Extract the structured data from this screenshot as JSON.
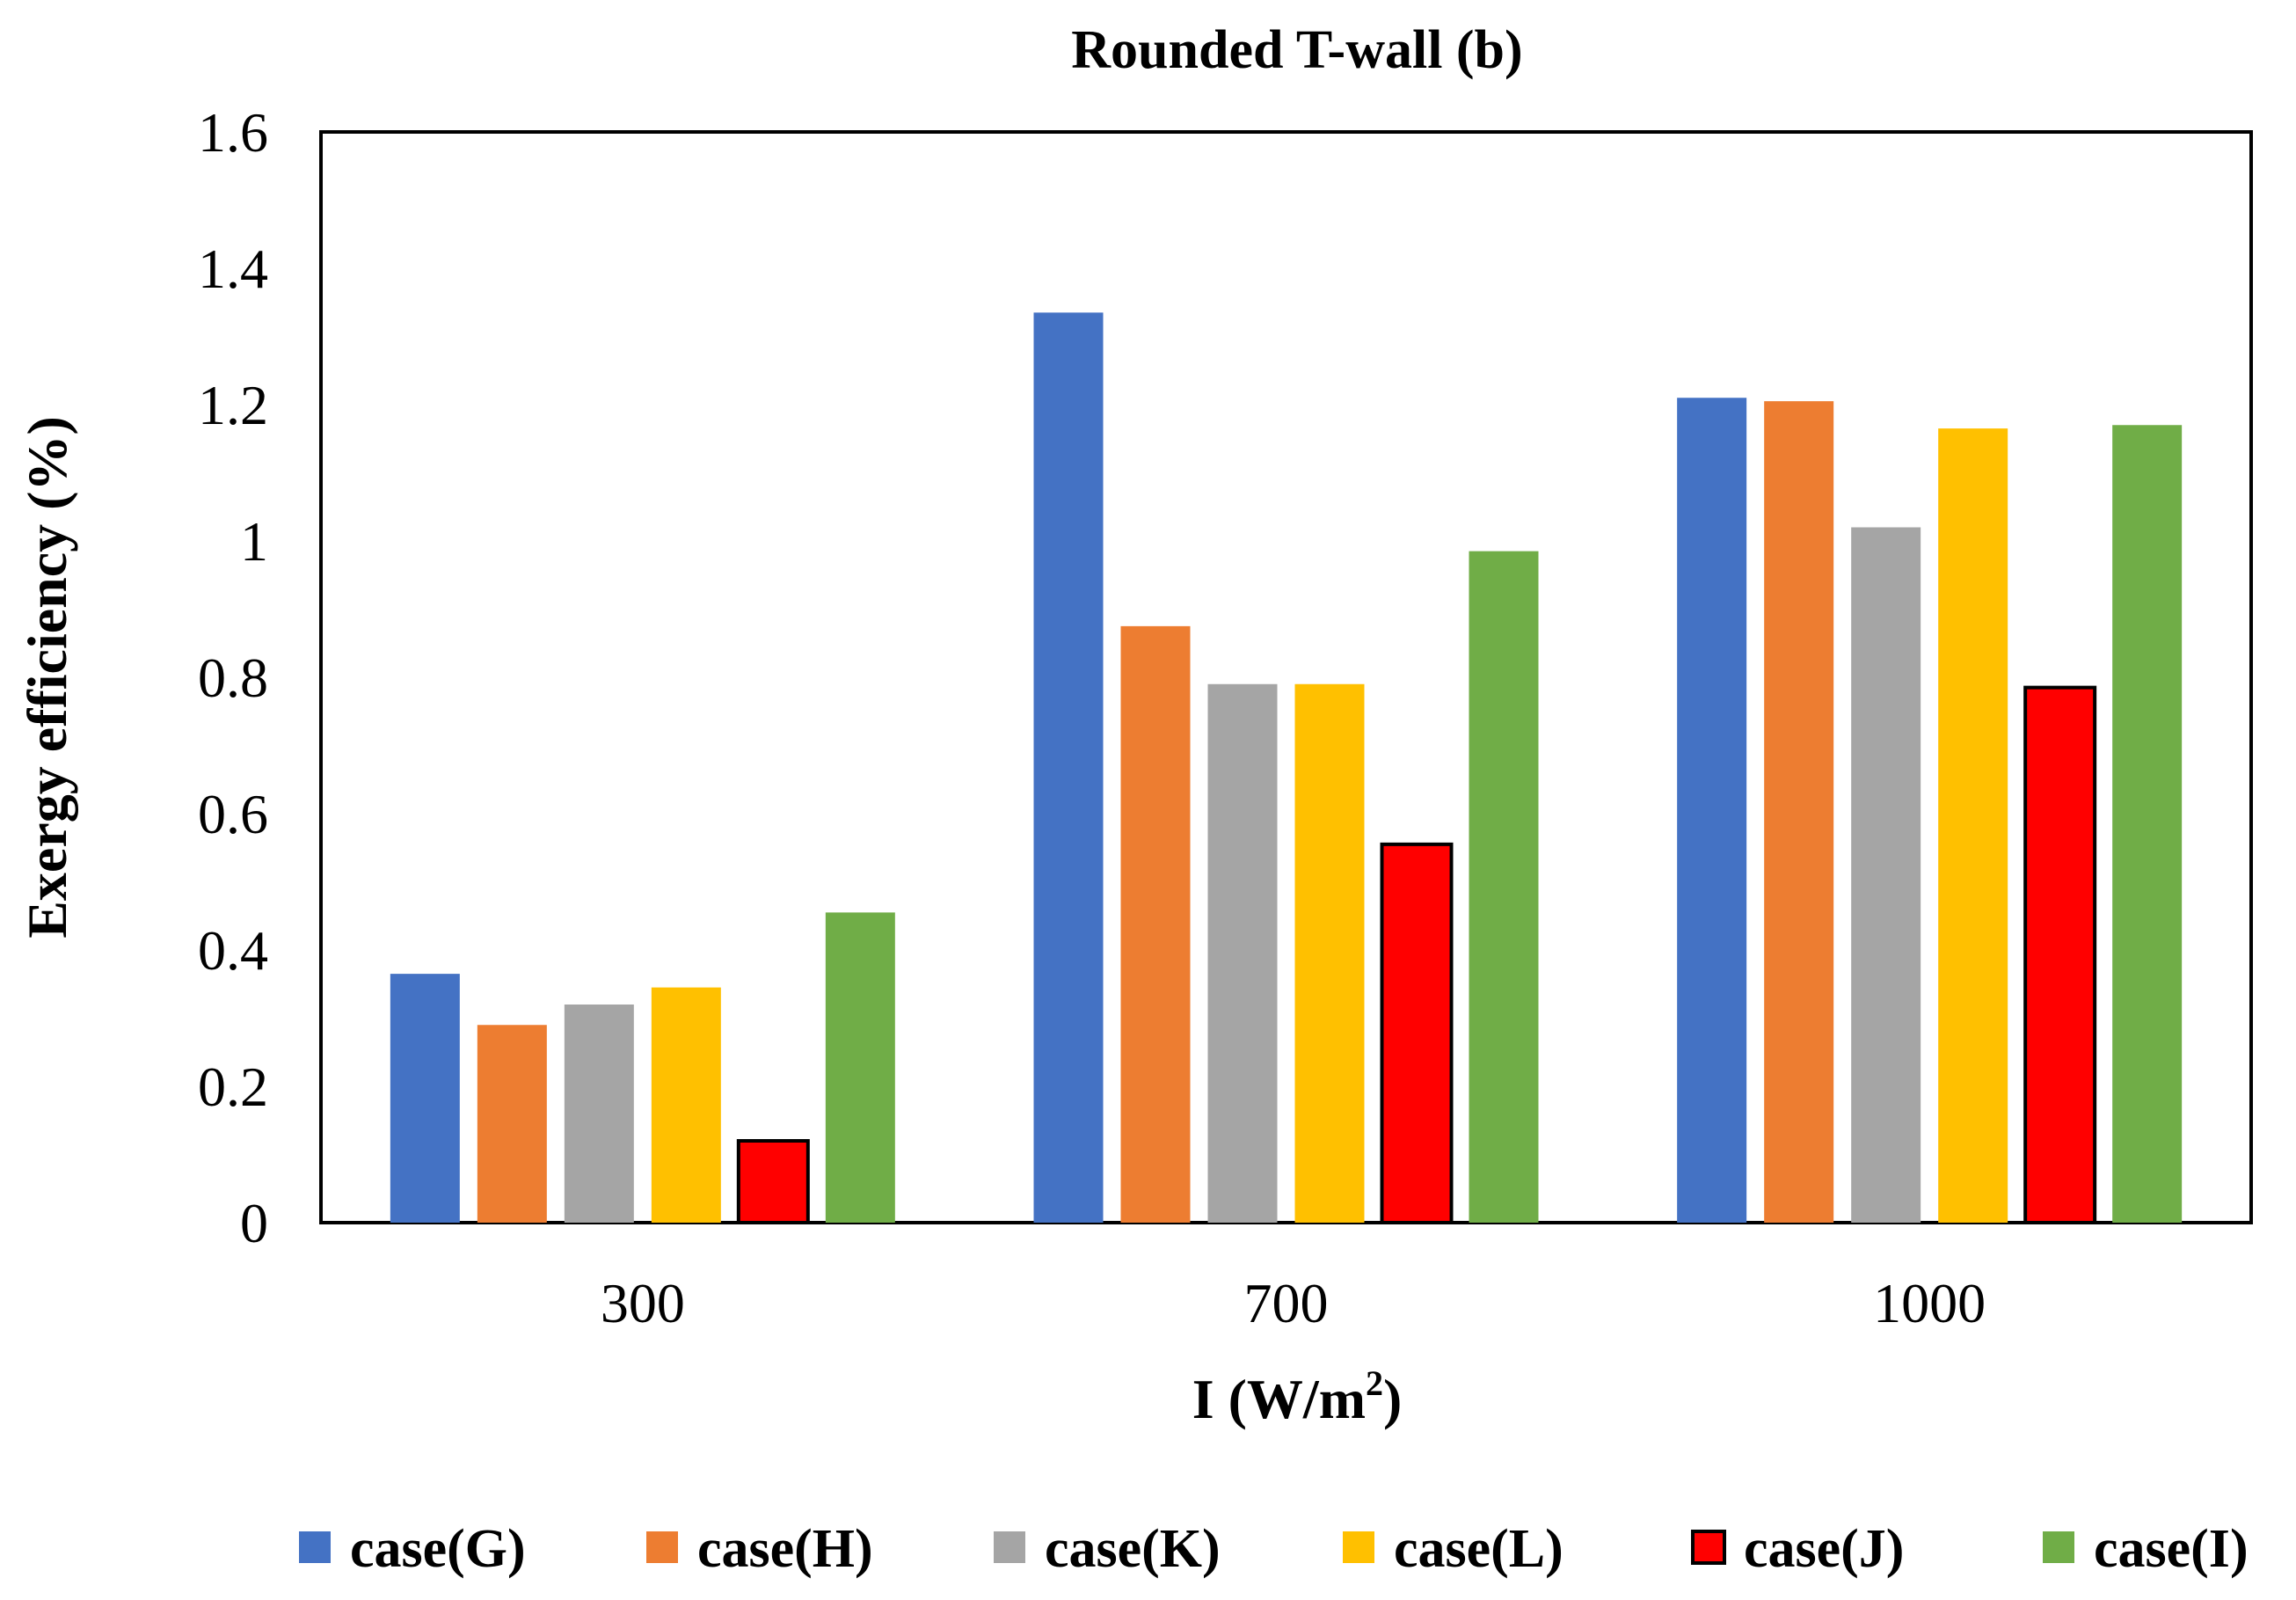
{
  "chart_data": {
    "type": "bar",
    "title": "Rounded T-wall (b)",
    "xlabel_main": "I (W/m",
    "xlabel_sup": "2",
    "xlabel_end": ")",
    "ylabel": "Exergy efficiency (%)",
    "ylim": [
      0,
      1.6
    ],
    "y_ticks": [
      "0",
      "0.2",
      "0.4",
      "0.6",
      "0.8",
      "1",
      "1.2",
      "1.4",
      "1.6"
    ],
    "categories": [
      "300",
      "700",
      "1000"
    ],
    "series": [
      {
        "name": "case(G)",
        "color": "#4472C4",
        "values": [
          0.365,
          1.335,
          1.21
        ]
      },
      {
        "name": "case(H)",
        "color": "#ED7D31",
        "values": [
          0.29,
          0.875,
          1.205
        ]
      },
      {
        "name": "case(K)",
        "color": "#A5A5A5",
        "values": [
          0.32,
          0.79,
          1.02
        ]
      },
      {
        "name": "case(L)",
        "color": "#FFC000",
        "values": [
          0.345,
          0.79,
          1.165
        ]
      },
      {
        "name": "case(J)",
        "color": "#FF0000",
        "values": [
          0.12,
          0.555,
          0.785
        ],
        "outline": true
      },
      {
        "name": "case(I)",
        "color": "#70AD47",
        "values": [
          0.455,
          0.985,
          1.17
        ]
      }
    ],
    "legend_position": "bottom",
    "grid": false
  }
}
